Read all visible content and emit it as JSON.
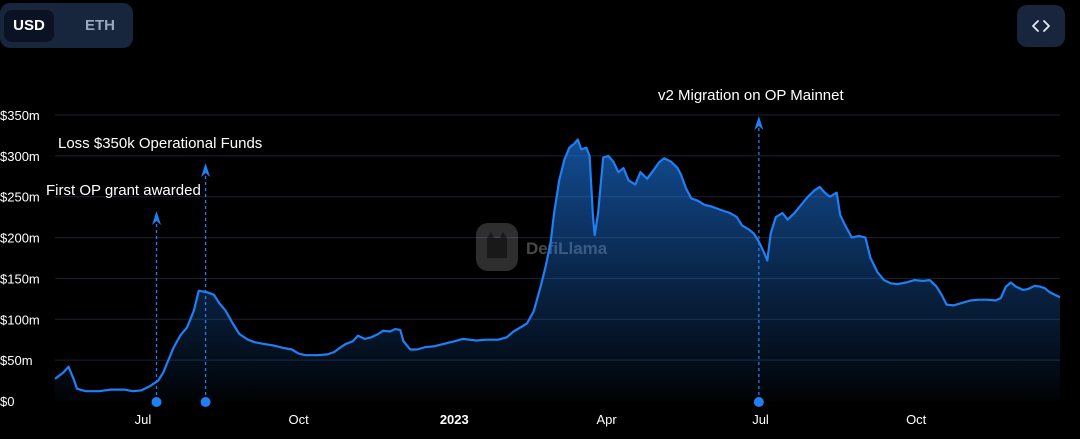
{
  "toggle": {
    "usd_label": "USD",
    "eth_label": "ETH",
    "selected": "USD"
  },
  "embed": {
    "icon": "code-brackets-icon"
  },
  "watermark": "DefiLlama",
  "colors": {
    "line": "#1f7ff5",
    "accent": "#1f7ff5",
    "background": "#000000",
    "button_bg": "#17253d"
  },
  "chart_data": {
    "type": "area",
    "grid": true,
    "ylim": [
      0,
      350
    ],
    "yticks": [
      0,
      50,
      100,
      150,
      200,
      250,
      300,
      350
    ],
    "ytick_labels": [
      "$0",
      "$50m",
      "$100m",
      "$150m",
      "$200m",
      "$250m",
      "$300m",
      "$350m"
    ],
    "xlim": [
      "2022-05-10",
      "2023-12-25"
    ],
    "xticks": [
      {
        "date": "2022-07-01",
        "label": "Jul",
        "bold": false
      },
      {
        "date": "2022-10-01",
        "label": "Oct",
        "bold": false
      },
      {
        "date": "2023-01-01",
        "label": "2023",
        "bold": true
      },
      {
        "date": "2023-04-01",
        "label": "Apr",
        "bold": false
      },
      {
        "date": "2023-07-01",
        "label": "Jul",
        "bold": false
      },
      {
        "date": "2023-10-01",
        "label": "Oct",
        "bold": false
      }
    ],
    "series": [
      {
        "points": [
          [
            "2022-05-10",
            27
          ],
          [
            "2022-05-15",
            35
          ],
          [
            "2022-05-18",
            42
          ],
          [
            "2022-05-21",
            27
          ],
          [
            "2022-05-23",
            15
          ],
          [
            "2022-05-28",
            12
          ],
          [
            "2022-06-05",
            12
          ],
          [
            "2022-06-12",
            14
          ],
          [
            "2022-06-20",
            14
          ],
          [
            "2022-06-25",
            12
          ],
          [
            "2022-06-30",
            13
          ],
          [
            "2022-07-05",
            18
          ],
          [
            "2022-07-10",
            25
          ],
          [
            "2022-07-13",
            35
          ],
          [
            "2022-07-16",
            50
          ],
          [
            "2022-07-19",
            65
          ],
          [
            "2022-07-23",
            80
          ],
          [
            "2022-07-27",
            90
          ],
          [
            "2022-07-31",
            110
          ],
          [
            "2022-08-03",
            135
          ],
          [
            "2022-08-08",
            133
          ],
          [
            "2022-08-12",
            130
          ],
          [
            "2022-08-15",
            120
          ],
          [
            "2022-08-19",
            110
          ],
          [
            "2022-08-23",
            95
          ],
          [
            "2022-08-27",
            82
          ],
          [
            "2022-09-01",
            75
          ],
          [
            "2022-09-05",
            72
          ],
          [
            "2022-09-10",
            70
          ],
          [
            "2022-09-16",
            68
          ],
          [
            "2022-09-22",
            65
          ],
          [
            "2022-09-27",
            63
          ],
          [
            "2022-10-01",
            58
          ],
          [
            "2022-10-05",
            56
          ],
          [
            "2022-10-12",
            56
          ],
          [
            "2022-10-18",
            57
          ],
          [
            "2022-10-22",
            60
          ],
          [
            "2022-10-26",
            66
          ],
          [
            "2022-10-29",
            70
          ],
          [
            "2022-11-02",
            73
          ],
          [
            "2022-11-05",
            80
          ],
          [
            "2022-11-09",
            76
          ],
          [
            "2022-11-13",
            78
          ],
          [
            "2022-11-17",
            82
          ],
          [
            "2022-11-20",
            86
          ],
          [
            "2022-11-24",
            85
          ],
          [
            "2022-11-27",
            88
          ],
          [
            "2022-11-30",
            87
          ],
          [
            "2022-12-02",
            73
          ],
          [
            "2022-12-06",
            63
          ],
          [
            "2022-12-10",
            63
          ],
          [
            "2022-12-15",
            66
          ],
          [
            "2022-12-20",
            67
          ],
          [
            "2022-12-26",
            70
          ],
          [
            "2023-01-01",
            73
          ],
          [
            "2023-01-06",
            76
          ],
          [
            "2023-01-10",
            75
          ],
          [
            "2023-01-14",
            74
          ],
          [
            "2023-01-20",
            75
          ],
          [
            "2023-01-27",
            75
          ],
          [
            "2023-02-01",
            78
          ],
          [
            "2023-02-05",
            85
          ],
          [
            "2023-02-09",
            90
          ],
          [
            "2023-02-13",
            95
          ],
          [
            "2023-02-17",
            110
          ],
          [
            "2023-02-21",
            140
          ],
          [
            "2023-02-24",
            165
          ],
          [
            "2023-02-27",
            195
          ],
          [
            "2023-03-01",
            230
          ],
          [
            "2023-03-04",
            270
          ],
          [
            "2023-03-07",
            295
          ],
          [
            "2023-03-10",
            310
          ],
          [
            "2023-03-13",
            315
          ],
          [
            "2023-03-15",
            320
          ],
          [
            "2023-03-17",
            308
          ],
          [
            "2023-03-20",
            310
          ],
          [
            "2023-03-22",
            300
          ],
          [
            "2023-03-24",
            225
          ],
          [
            "2023-03-25",
            203
          ],
          [
            "2023-03-27",
            230
          ],
          [
            "2023-03-30",
            298
          ],
          [
            "2023-04-02",
            300
          ],
          [
            "2023-04-05",
            293
          ],
          [
            "2023-04-08",
            280
          ],
          [
            "2023-04-11",
            285
          ],
          [
            "2023-04-14",
            270
          ],
          [
            "2023-04-18",
            265
          ],
          [
            "2023-04-21",
            280
          ],
          [
            "2023-04-25",
            272
          ],
          [
            "2023-04-29",
            283
          ],
          [
            "2023-05-02",
            292
          ],
          [
            "2023-05-05",
            297
          ],
          [
            "2023-05-09",
            293
          ],
          [
            "2023-05-13",
            285
          ],
          [
            "2023-05-15",
            277
          ],
          [
            "2023-05-18",
            260
          ],
          [
            "2023-05-21",
            248
          ],
          [
            "2023-05-25",
            245
          ],
          [
            "2023-05-29",
            240
          ],
          [
            "2023-06-02",
            238
          ],
          [
            "2023-06-06",
            235
          ],
          [
            "2023-06-10",
            232
          ],
          [
            "2023-06-13",
            230
          ],
          [
            "2023-06-17",
            225
          ],
          [
            "2023-06-20",
            215
          ],
          [
            "2023-06-24",
            210
          ],
          [
            "2023-06-27",
            205
          ],
          [
            "2023-06-30",
            195
          ],
          [
            "2023-07-03",
            182
          ],
          [
            "2023-07-05",
            172
          ],
          [
            "2023-07-07",
            205
          ],
          [
            "2023-07-10",
            225
          ],
          [
            "2023-07-14",
            230
          ],
          [
            "2023-07-17",
            222
          ],
          [
            "2023-07-21",
            230
          ],
          [
            "2023-07-25",
            240
          ],
          [
            "2023-07-29",
            250
          ],
          [
            "2023-08-02",
            258
          ],
          [
            "2023-08-05",
            262
          ],
          [
            "2023-08-08",
            255
          ],
          [
            "2023-08-11",
            250
          ],
          [
            "2023-08-15",
            255
          ],
          [
            "2023-08-17",
            228
          ],
          [
            "2023-08-20",
            215
          ],
          [
            "2023-08-24",
            200
          ],
          [
            "2023-08-28",
            202
          ],
          [
            "2023-09-01",
            200
          ],
          [
            "2023-09-04",
            175
          ],
          [
            "2023-09-08",
            158
          ],
          [
            "2023-09-12",
            148
          ],
          [
            "2023-09-16",
            144
          ],
          [
            "2023-09-20",
            143
          ],
          [
            "2023-09-25",
            145
          ],
          [
            "2023-09-30",
            148
          ],
          [
            "2023-10-05",
            147
          ],
          [
            "2023-10-09",
            148
          ],
          [
            "2023-10-13",
            140
          ],
          [
            "2023-10-16",
            130
          ],
          [
            "2023-10-19",
            118
          ],
          [
            "2023-10-23",
            117
          ],
          [
            "2023-10-28",
            120
          ],
          [
            "2023-11-02",
            123
          ],
          [
            "2023-11-07",
            124
          ],
          [
            "2023-11-12",
            124
          ],
          [
            "2023-11-17",
            123
          ],
          [
            "2023-11-20",
            126
          ],
          [
            "2023-11-23",
            140
          ],
          [
            "2023-11-26",
            145
          ],
          [
            "2023-11-29",
            140
          ],
          [
            "2023-12-03",
            136
          ],
          [
            "2023-12-06",
            137
          ],
          [
            "2023-12-10",
            141
          ],
          [
            "2023-12-13",
            140
          ],
          [
            "2023-12-16",
            138
          ],
          [
            "2023-12-19",
            133
          ],
          [
            "2023-12-22",
            130
          ],
          [
            "2023-12-25",
            127
          ]
        ]
      }
    ],
    "annotations": [
      {
        "text": "First OP grant awarded",
        "date": "2022-07-09"
      },
      {
        "text": "Loss $350k Operational Funds",
        "date": "2022-08-07"
      },
      {
        "text": "v2 Migration on OP Mainnet",
        "date": "2023-06-30"
      }
    ]
  }
}
